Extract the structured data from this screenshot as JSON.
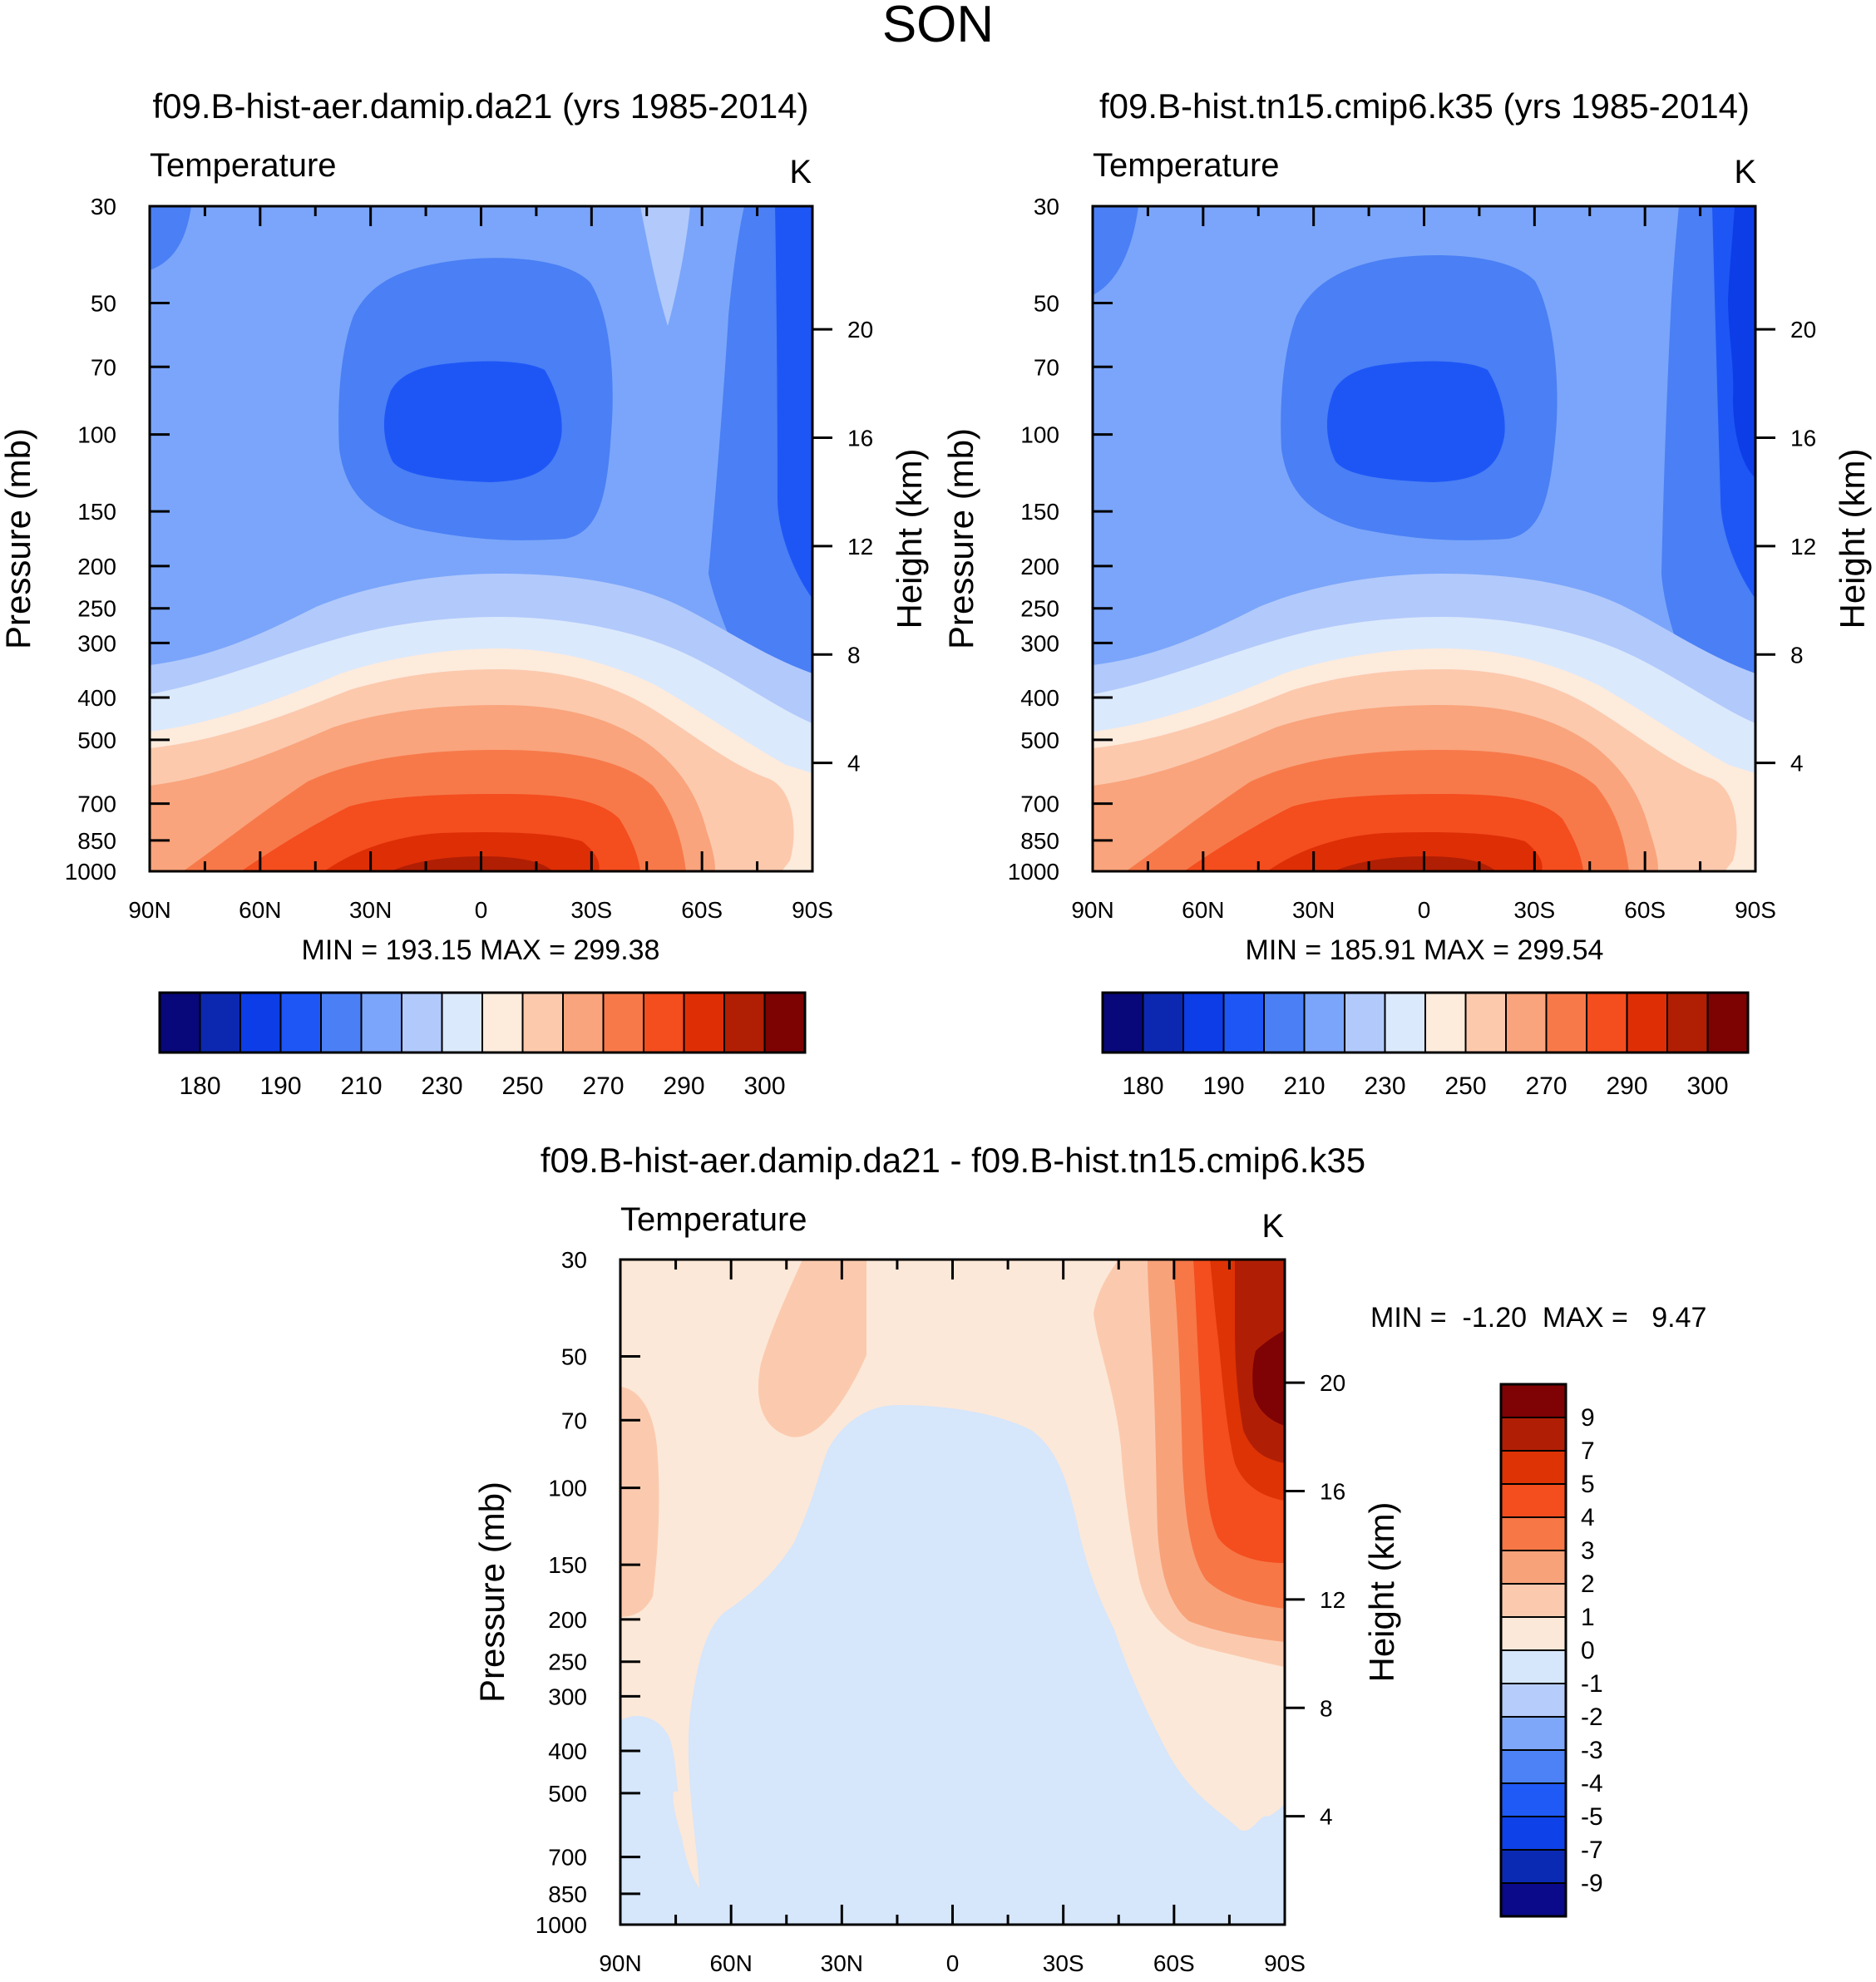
{
  "page_title": "SON",
  "colors": {
    "abs_palette": [
      "#08087a",
      "#0c28b0",
      "#0d3de6",
      "#1e56f6",
      "#4a7ff5",
      "#7aa5fa",
      "#b2c9fb",
      "#dbe9fc",
      "#fdebdc",
      "#fcc9ad",
      "#f9a47c",
      "#f7794a",
      "#f44d1e",
      "#de2e06",
      "#b01e04",
      "#7d0202"
    ],
    "diff_palette": [
      "#0a0a8a",
      "#0b2ab4",
      "#0e42e8",
      "#1f5af6",
      "#4c82f5",
      "#7ea7fa",
      "#b6ccfb",
      "#d6e6fb",
      "#fce8d8",
      "#fbcaae",
      "#f8a27a",
      "#f77746",
      "#f44d1e",
      "#de3305",
      "#b01f05",
      "#7f0204"
    ]
  },
  "chart_data": [
    {
      "type": "heatmap",
      "title": "f09.B-hist-aer.damip.da21 (yrs 1985-2014)",
      "left_label": "Temperature",
      "right_label": "K",
      "xlabel": "",
      "ylabel": "Pressure (mb)",
      "y2label": "Height (km)",
      "x_ticklabels": [
        "90N",
        "60N",
        "30N",
        "0",
        "30S",
        "60S",
        "90S"
      ],
      "y_ticklabels": [
        "30",
        "50",
        "70",
        "100",
        "150",
        "200",
        "250",
        "300",
        "400",
        "500",
        "700",
        "850",
        "1000"
      ],
      "y2_ticklabels": [
        "20",
        "16",
        "12",
        "8",
        "4"
      ],
      "stats": "MIN = 193.15  MAX = 299.38",
      "colorbar_labels": [
        "180",
        "190",
        "210",
        "230",
        "250",
        "270",
        "290",
        "300"
      ],
      "min": 193.15,
      "max": 299.38
    },
    {
      "type": "heatmap",
      "title": "f09.B-hist.tn15.cmip6.k35 (yrs 1985-2014)",
      "left_label": "Temperature",
      "right_label": "K",
      "xlabel": "",
      "ylabel": "Pressure (mb)",
      "y2label": "Height (km)",
      "x_ticklabels": [
        "90N",
        "60N",
        "30N",
        "0",
        "30S",
        "60S",
        "90S"
      ],
      "y_ticklabels": [
        "30",
        "50",
        "70",
        "100",
        "150",
        "200",
        "250",
        "300",
        "400",
        "500",
        "700",
        "850",
        "1000"
      ],
      "y2_ticklabels": [
        "20",
        "16",
        "12",
        "8",
        "4"
      ],
      "stats": "MIN = 185.91  MAX = 299.54",
      "colorbar_labels": [
        "180",
        "190",
        "210",
        "230",
        "250",
        "270",
        "290",
        "300"
      ],
      "min": 185.91,
      "max": 299.54
    },
    {
      "type": "heatmap",
      "title": "f09.B-hist-aer.damip.da21 - f09.B-hist.tn15.cmip6.k35",
      "left_label": "Temperature",
      "right_label": "K",
      "xlabel": "",
      "ylabel": "Pressure (mb)",
      "y2label": "Height (km)",
      "x_ticklabels": [
        "90N",
        "60N",
        "30N",
        "0",
        "30S",
        "60S",
        "90S"
      ],
      "y_ticklabels": [
        "30",
        "50",
        "70",
        "100",
        "150",
        "200",
        "250",
        "300",
        "400",
        "500",
        "700",
        "850",
        "1000"
      ],
      "y2_ticklabels": [
        "20",
        "16",
        "12",
        "8",
        "4"
      ],
      "stats": "MIN =  -1.20  MAX =   9.47",
      "colorbar_labels": [
        "9",
        "7",
        "5",
        "4",
        "3",
        "2",
        "1",
        "0",
        "-1",
        "-2",
        "-3",
        "-4",
        "-5",
        "-7",
        "-9"
      ],
      "min": -1.2,
      "max": 9.47
    }
  ]
}
